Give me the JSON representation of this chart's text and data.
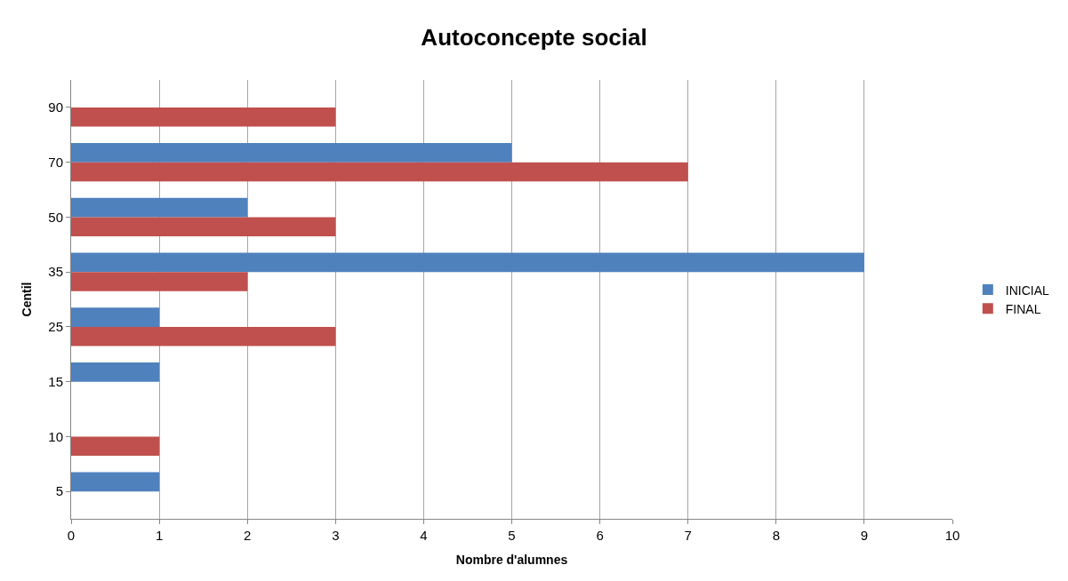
{
  "chart_data": {
    "type": "bar",
    "orientation": "horizontal",
    "title": "Autoconcepte social",
    "xlabel": "Nombre d'alumnes",
    "ylabel": "Centil",
    "categories": [
      "90",
      "70",
      "50",
      "35",
      "25",
      "15",
      "10",
      "5"
    ],
    "series": [
      {
        "name": "INICIAL",
        "color": "#4f81bd",
        "values": [
          0,
          5,
          2,
          9,
          1,
          1,
          0,
          1
        ]
      },
      {
        "name": "FINAL",
        "color": "#c0504d",
        "values": [
          3,
          7,
          3,
          2,
          3,
          0,
          1,
          0
        ]
      }
    ],
    "xlim": [
      0,
      10
    ],
    "xticks": [
      0,
      1,
      2,
      3,
      4,
      5,
      6,
      7,
      8,
      9,
      10
    ],
    "grid": "x",
    "legend": "right"
  }
}
